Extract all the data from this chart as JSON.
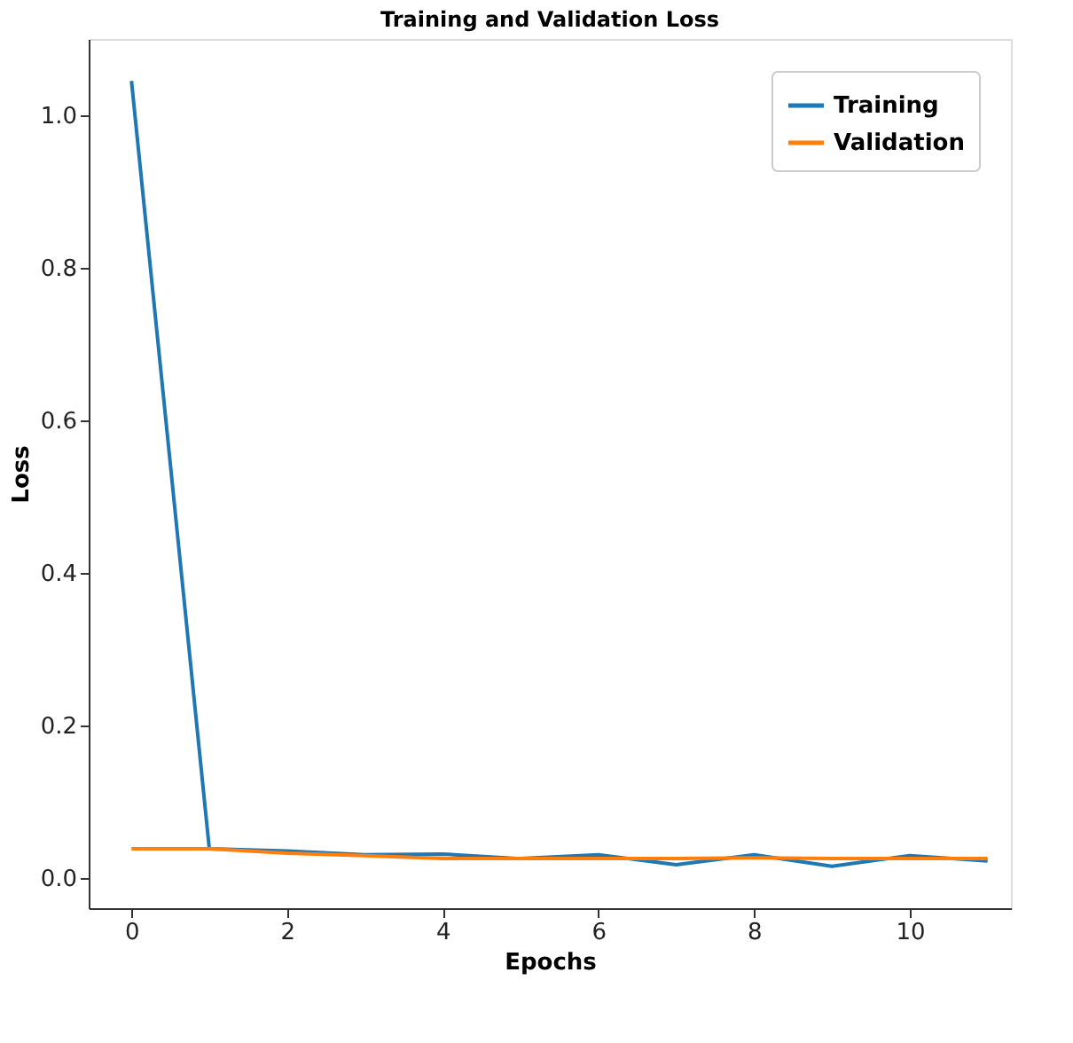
{
  "chart_data": {
    "type": "line",
    "title": "Training and Validation Loss",
    "xlabel": "Epochs",
    "ylabel": "Loss",
    "x": [
      0,
      1,
      2,
      3,
      4,
      5,
      6,
      7,
      8,
      9,
      10,
      11
    ],
    "series": [
      {
        "name": "Training",
        "color": "#1f77b4",
        "values": [
          1.045,
          0.038,
          0.035,
          0.03,
          0.031,
          0.025,
          0.03,
          0.017,
          0.03,
          0.015,
          0.029,
          0.022
        ]
      },
      {
        "name": "Validation",
        "color": "#ff7f0e",
        "values": [
          0.038,
          0.038,
          0.032,
          0.029,
          0.025,
          0.025,
          0.025,
          0.025,
          0.026,
          0.025,
          0.025,
          0.025
        ]
      }
    ],
    "xlim": [
      -0.55,
      11.3
    ],
    "ylim": [
      -0.04,
      1.1
    ],
    "xticks": [
      0,
      2,
      4,
      6,
      8,
      10
    ],
    "yticks": [
      {
        "value": 0,
        "label": "0.0"
      },
      0.2,
      0.4,
      0.6,
      0.8,
      {
        "value": 1,
        "label": "1.0"
      }
    ],
    "grid": false,
    "legend": "top right",
    "line_style": "solid",
    "marker": "none"
  }
}
